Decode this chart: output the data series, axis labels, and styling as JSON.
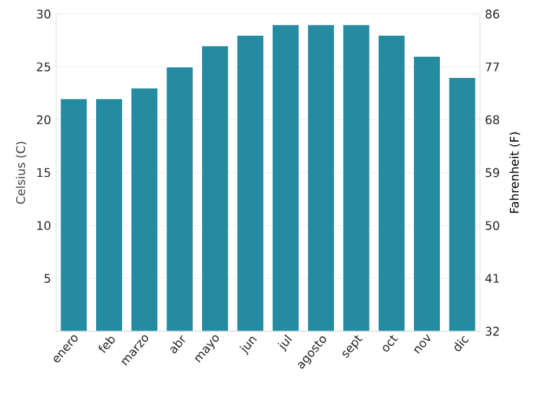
{
  "chart_data": {
    "type": "bar",
    "ylabel": "Celsius (C)",
    "y2label": "Fahrenheit (F)",
    "categories": [
      "enero",
      "feb",
      "marzo",
      "abr",
      "mayo",
      "jun",
      "jul",
      "agosto",
      "sept",
      "oct",
      "nov",
      "dic"
    ],
    "values": [
      22,
      22,
      23,
      25,
      27,
      28,
      29,
      29,
      29,
      28,
      26,
      24
    ],
    "color": "#258ba0",
    "ylim": [
      0,
      30
    ],
    "yticks": [
      {
        "value": 0,
        "label": null
      },
      5,
      10,
      15,
      20,
      25,
      30
    ],
    "y2lim": [
      32,
      86
    ],
    "y2ticks": [
      32,
      41,
      50,
      59,
      68,
      77,
      86
    ],
    "grid": "y"
  }
}
